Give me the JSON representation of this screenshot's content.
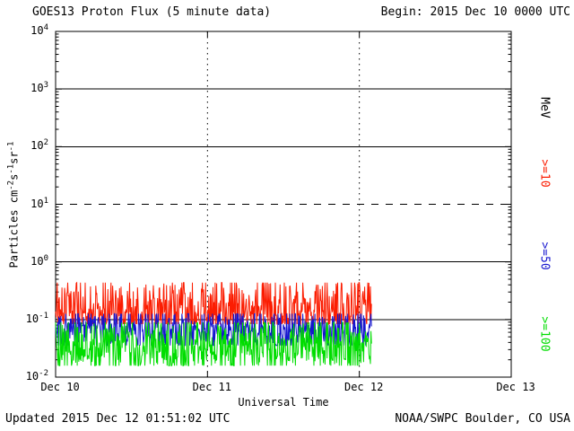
{
  "chart_data": {
    "type": "line",
    "title": "GOES13 Proton Flux (5 minute data)",
    "begin_label": "Begin: 2015 Dec 10 0000 UTC",
    "xlabel": "Universal Time",
    "ylabel": "Particles cm-2s-1sr-1",
    "right_axis_unit": "MeV",
    "y_log_range": [
      -2,
      4
    ],
    "y_tick_exponents": [
      4,
      3,
      2,
      1,
      0,
      -1,
      -2
    ],
    "x_ticks": [
      "Dec 10",
      "Dec 11",
      "Dec 12",
      "Dec 13"
    ],
    "x_days": 3,
    "data_end_day": 2.08,
    "gridlines": {
      "solid_log": [
        3,
        2,
        0,
        -1
      ],
      "dashed_log": [
        1
      ],
      "vertical_days": [
        1,
        2
      ]
    },
    "legend_position": "right-rotated",
    "grid": "partial-horizontal-decades",
    "seed": 20151210,
    "points_per_day": 288,
    "series": [
      {
        "name": ">=10",
        "color": "#fb1d02",
        "log_center": -0.83,
        "log_spread": 0.45,
        "log_min": -1.08,
        "log_max": -0.36,
        "flux_range_approx": "0.08-0.42"
      },
      {
        "name": ">=50",
        "color": "#1515cf",
        "log_center": -1.18,
        "log_spread": 0.3,
        "log_min": -1.45,
        "log_max": -0.9,
        "flux_range_approx": "0.035-0.12"
      },
      {
        "name": ">=100",
        "color": "#00dd00",
        "log_center": -1.48,
        "log_spread": 0.38,
        "log_min": -1.8,
        "log_max": -1.05,
        "flux_range_approx": "0.016-0.09"
      }
    ]
  },
  "footer": {
    "updated": "Updated 2015 Dec 12 01:51:02 UTC",
    "credit": "NOAA/SWPC Boulder, CO USA"
  }
}
